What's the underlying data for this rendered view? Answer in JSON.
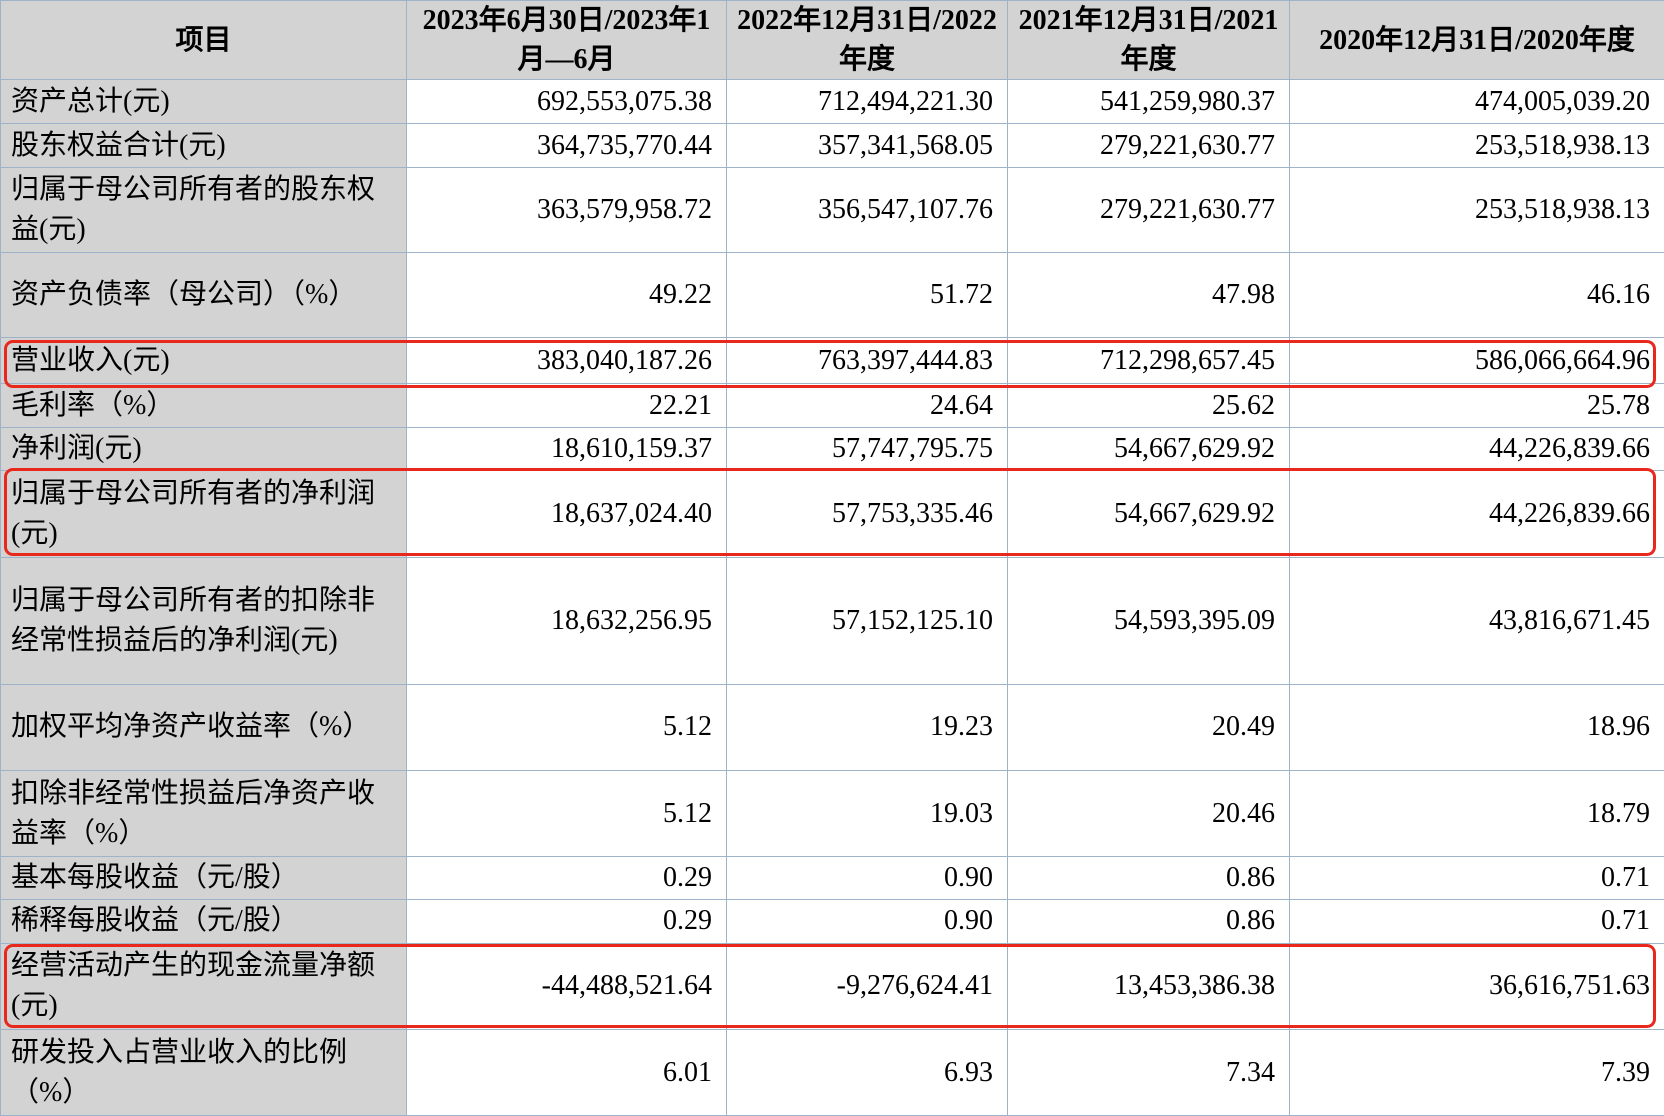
{
  "table": {
    "headers": [
      "项目",
      "2023年6月30日/2023年1月—6月",
      "2022年12月31日/2022年度",
      "2021年12月31日/2021年度",
      "2020年12月31日/2020年度"
    ],
    "rows": [
      {
        "label": "资产总计(元)",
        "values": [
          "692,553,075.38",
          "712,494,221.30",
          "541,259,980.37",
          "474,005,039.20"
        ]
      },
      {
        "label": "股东权益合计(元)",
        "values": [
          "364,735,770.44",
          "357,341,568.05",
          "279,221,630.77",
          "253,518,938.13"
        ]
      },
      {
        "label": "归属于母公司所有者的股东权益(元)",
        "values": [
          "363,579,958.72",
          "356,547,107.76",
          "279,221,630.77",
          "253,518,938.13"
        ]
      },
      {
        "label": "资产负债率（母公司）（%）",
        "values": [
          "49.22",
          "51.72",
          "47.98",
          "46.16"
        ]
      },
      {
        "label": "营业收入(元)",
        "values": [
          "383,040,187.26",
          "763,397,444.83",
          "712,298,657.45",
          "586,066,664.96"
        ]
      },
      {
        "label": "毛利率（%）",
        "values": [
          "22.21",
          "24.64",
          "25.62",
          "25.78"
        ]
      },
      {
        "label": "净利润(元)",
        "values": [
          "18,610,159.37",
          "57,747,795.75",
          "54,667,629.92",
          "44,226,839.66"
        ]
      },
      {
        "label": "归属于母公司所有者的净利润(元)",
        "values": [
          "18,637,024.40",
          "57,753,335.46",
          "54,667,629.92",
          "44,226,839.66"
        ]
      },
      {
        "label": "归属于母公司所有者的扣除非经常性损益后的净利润(元)",
        "values": [
          "18,632,256.95",
          "57,152,125.10",
          "54,593,395.09",
          "43,816,671.45"
        ]
      },
      {
        "label": "加权平均净资产收益率（%）",
        "values": [
          "5.12",
          "19.23",
          "20.49",
          "18.96"
        ]
      },
      {
        "label": "扣除非经常性损益后净资产收益率（%）",
        "values": [
          "5.12",
          "19.03",
          "20.46",
          "18.79"
        ]
      },
      {
        "label": "基本每股收益（元/股）",
        "values": [
          "0.29",
          "0.90",
          "0.86",
          "0.71"
        ]
      },
      {
        "label": "稀释每股收益（元/股）",
        "values": [
          "0.29",
          "0.90",
          "0.86",
          "0.71"
        ]
      },
      {
        "label": "经营活动产生的现金流量净额(元)",
        "values": [
          "-44,488,521.64",
          "-9,276,624.41",
          "13,453,386.38",
          "36,616,751.63"
        ]
      },
      {
        "label": "研发投入占营业收入的比例（%）",
        "values": [
          "6.01",
          "6.93",
          "7.34",
          "7.39"
        ]
      }
    ],
    "highlight_color": "#e8281c"
  }
}
